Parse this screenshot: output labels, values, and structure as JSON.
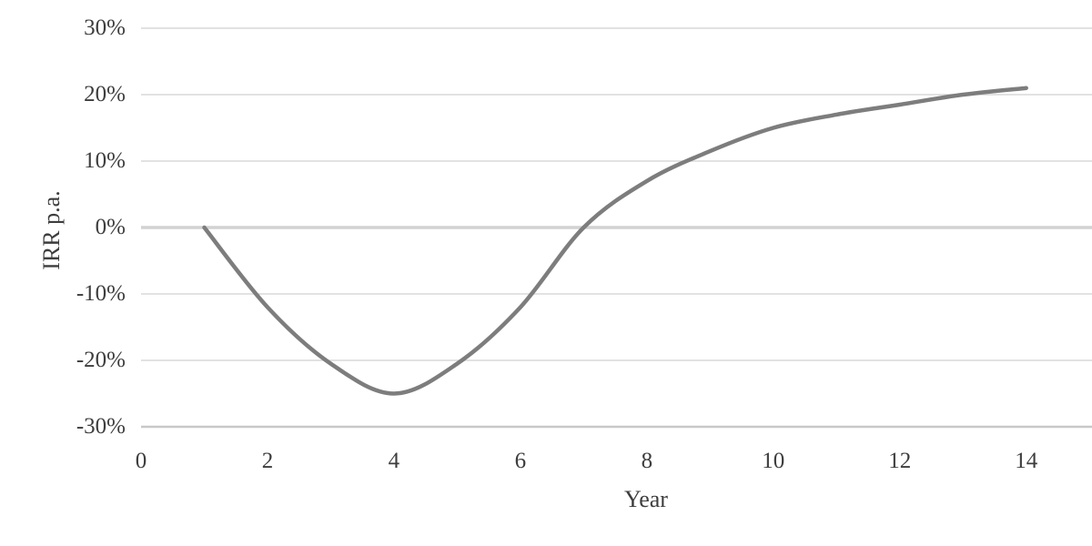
{
  "chart_data": {
    "type": "line",
    "title": "",
    "xlabel": "Year",
    "ylabel": "IRR p.a.",
    "x": [
      1,
      2,
      3,
      4,
      5,
      6,
      7,
      8,
      9,
      10,
      11,
      12,
      13,
      14
    ],
    "series": [
      {
        "name": "IRR p.a.",
        "values": [
          0,
          -12,
          -20.5,
          -25,
          -20.5,
          -12,
          0,
          7,
          11.5,
          15,
          17,
          18.5,
          20,
          21
        ]
      }
    ],
    "xticks": {
      "values": [
        0,
        2,
        4,
        6,
        8,
        10,
        12,
        14
      ],
      "labels": [
        "0",
        "2",
        "4",
        "6",
        "8",
        "10",
        "12",
        "14"
      ]
    },
    "yticks": {
      "values": [
        30,
        20,
        10,
        0,
        -10,
        -20,
        -30
      ],
      "labels": [
        "30%",
        "20%",
        "10%",
        "0%",
        "-10%",
        "-20%",
        "-30%"
      ]
    },
    "xlim": [
      0,
      15.04
    ],
    "ylim": [
      -30,
      30
    ],
    "grid": "horizontal",
    "legend": "none",
    "smooth": true,
    "colors": {
      "line": "#7d7d7d",
      "gridline": "#d9d9d9",
      "zero_gridline": "#d2d2d2",
      "bottom_axis_line": "#c8c8c8",
      "text": "#3d3d3d",
      "background": "#ffffff"
    }
  }
}
